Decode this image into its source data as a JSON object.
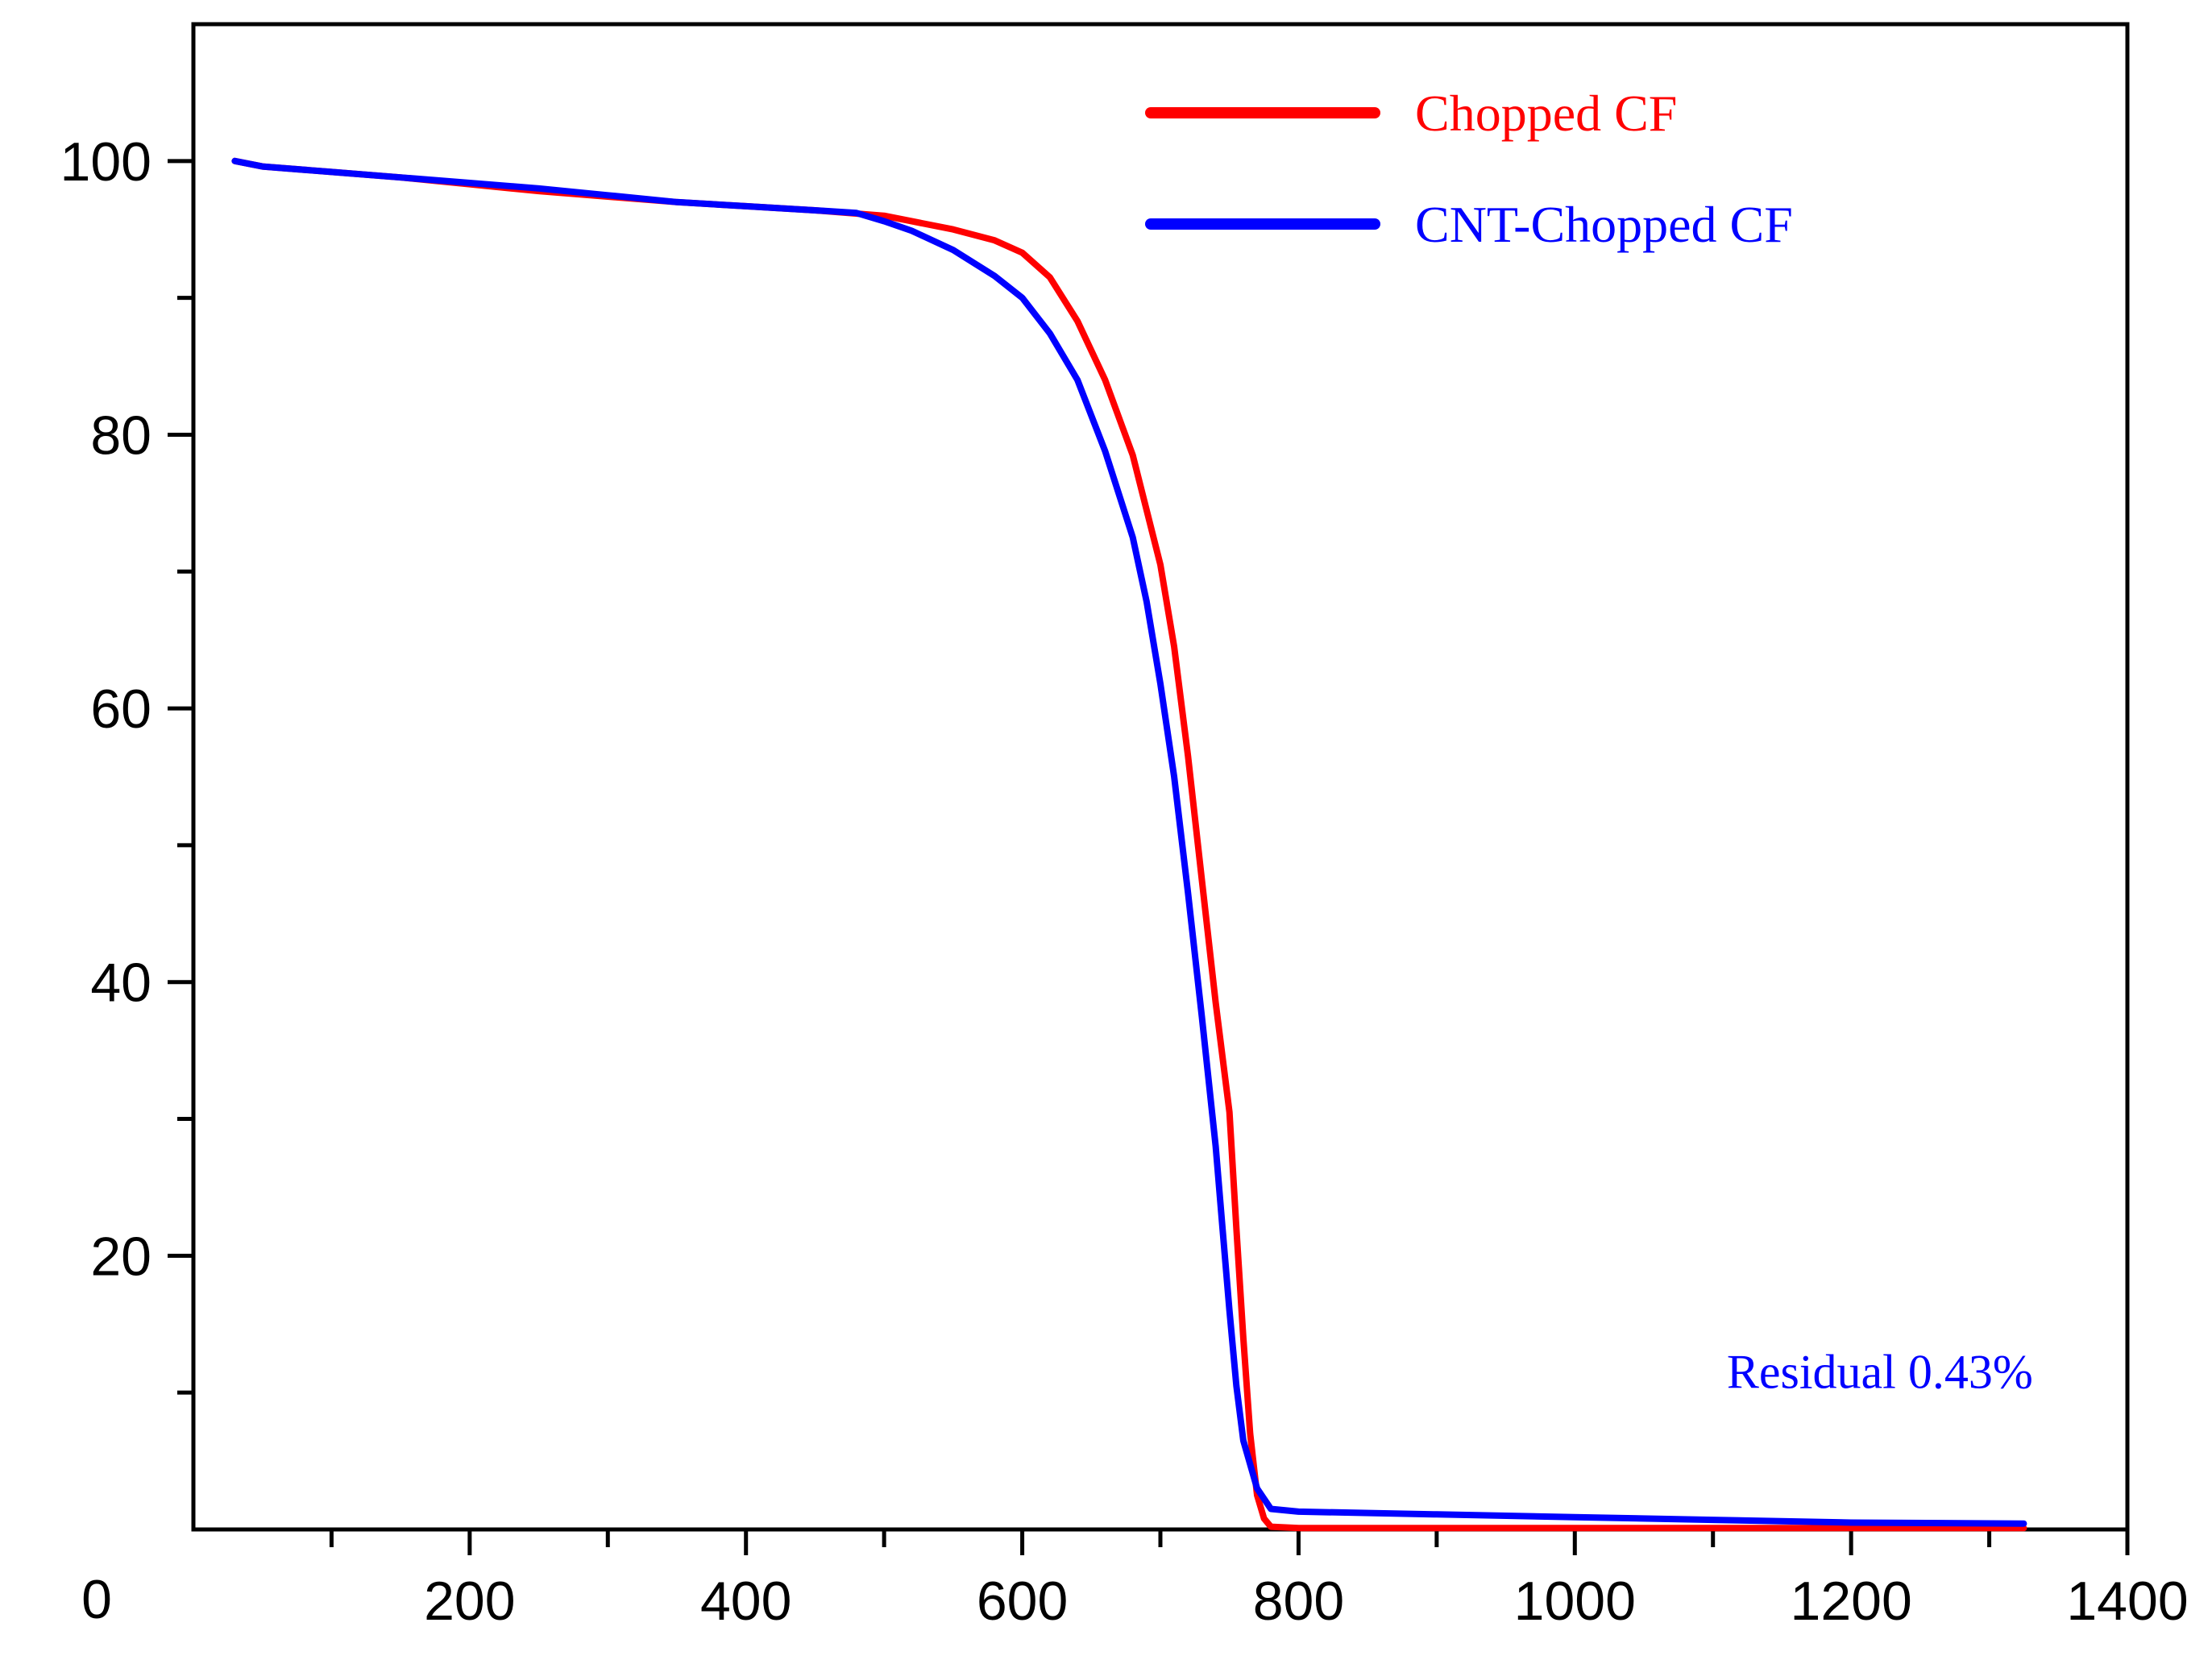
{
  "chart_data": {
    "type": "line",
    "title": "",
    "xlabel": "",
    "ylabel": "",
    "xlim": [
      0,
      1400
    ],
    "ylim": [
      0,
      110
    ],
    "grid": false,
    "legend_position": "top-right",
    "x_ticks": [
      200,
      400,
      600,
      800,
      1000,
      1200,
      1400
    ],
    "x_tick_labels": [
      "200",
      "400",
      "600",
      "800",
      "1000",
      "1200",
      "1400"
    ],
    "x_minor_step": 100,
    "y_ticks": [
      0,
      20,
      40,
      60,
      80,
      100
    ],
    "y_tick_labels": [
      "0",
      "20",
      "40",
      "60",
      "80",
      "100"
    ],
    "y_minor_step": 10,
    "series": [
      {
        "name": "Chopped CF",
        "color": "#ff0000",
        "x": [
          30,
          50,
          100,
          150,
          200,
          250,
          300,
          350,
          400,
          450,
          500,
          550,
          580,
          600,
          620,
          640,
          660,
          680,
          700,
          710,
          720,
          730,
          740,
          750,
          755,
          760,
          765,
          770,
          775,
          780,
          800,
          900,
          1000,
          1100,
          1200,
          1325
        ],
        "y": [
          100,
          99.6,
          99.2,
          98.8,
          98.3,
          97.8,
          97.4,
          97.0,
          96.7,
          96.4,
          96.0,
          95.0,
          94.2,
          93.3,
          91.5,
          88.3,
          84.0,
          78.5,
          70.5,
          64.5,
          56.5,
          47.5,
          38.5,
          30.5,
          22.0,
          14.0,
          7.0,
          2.5,
          0.8,
          0.2,
          0.1,
          0.1,
          0.1,
          0.1,
          0.1,
          0.1
        ]
      },
      {
        "name": "CNT-Chopped CF",
        "color": "#0000ff",
        "x": [
          30,
          50,
          100,
          150,
          200,
          250,
          300,
          350,
          400,
          450,
          480,
          500,
          520,
          550,
          580,
          600,
          620,
          640,
          660,
          680,
          690,
          700,
          710,
          720,
          730,
          740,
          745,
          750,
          755,
          760,
          770,
          780,
          800,
          900,
          1000,
          1100,
          1200,
          1325
        ],
        "y": [
          100,
          99.6,
          99.2,
          98.8,
          98.4,
          98.0,
          97.5,
          97.0,
          96.7,
          96.4,
          96.2,
          95.6,
          94.9,
          93.5,
          91.6,
          90.0,
          87.4,
          84.0,
          78.8,
          72.5,
          67.8,
          61.8,
          55.0,
          46.5,
          37.5,
          28.0,
          22.0,
          16.0,
          10.5,
          6.5,
          3.0,
          1.5,
          1.3,
          1.1,
          0.9,
          0.7,
          0.5,
          0.43
        ]
      }
    ],
    "annotations": [
      {
        "text": "Residual 0.43%",
        "x": 1110,
        "y": 11.5,
        "color": "#0000ff"
      }
    ]
  }
}
